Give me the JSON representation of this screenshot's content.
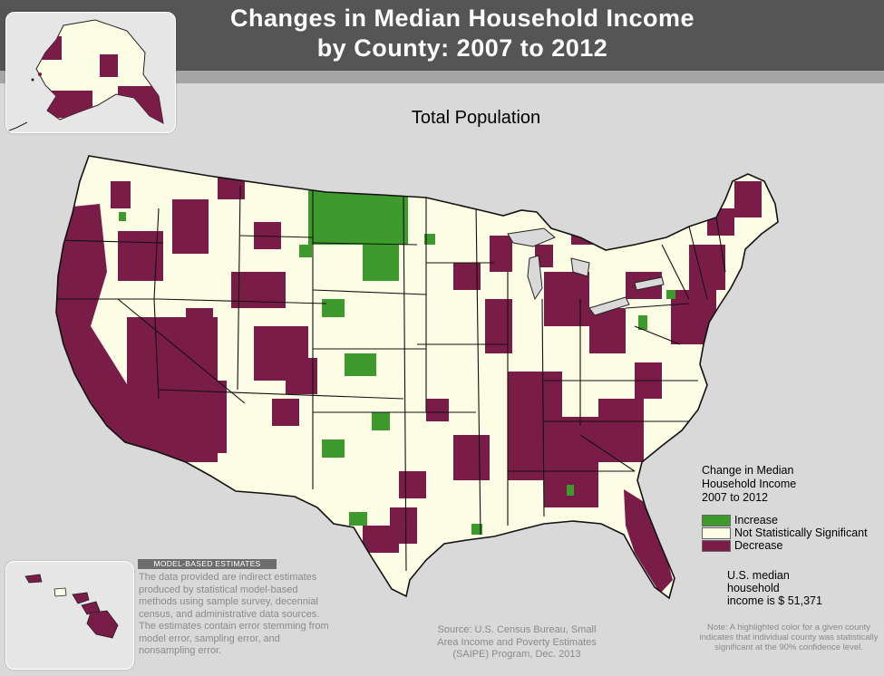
{
  "header": {
    "title_line1": "Changes in Median Household Income",
    "title_line2": "by County: 2007 to 2012"
  },
  "map": {
    "subtitle": "Total Population",
    "colors": {
      "increase": "#3e9a2c",
      "not_significant": "#fdfde6",
      "decrease": "#7a1c48",
      "header": "#555555",
      "background": "#d9d9d9"
    }
  },
  "legend": {
    "title_line1": "Change in Median",
    "title_line2": "Household Income",
    "title_line3": "2007 to 2012",
    "items": [
      {
        "label": "Increase",
        "color": "#3e9a2c"
      },
      {
        "label": "Not Statistically Significant",
        "color": "#fdfde6"
      },
      {
        "label": "Decrease",
        "color": "#7a1c48"
      }
    ]
  },
  "median": {
    "line1": "U.S. median",
    "line2": "household",
    "line3": "income is $ 51,371"
  },
  "note": {
    "text": "Note: A highlighted color for a given county indicates that individual county was statistically significant at the 90% confidence level."
  },
  "source": {
    "text": "Source: U.S. Census Bureau, Small Area Income and Poverty Estimates (SAIPE) Program, Dec. 2013"
  },
  "model": {
    "heading": "MODEL-BASED ESTIMATES",
    "text": "The data provided are indirect estimates produced by statistical model-based methods using sample survey, decennial census, and administrative data sources. The estimates contain error stemming from model error, sampling error, and nonsampling error."
  }
}
